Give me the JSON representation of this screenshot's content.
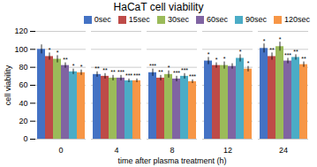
{
  "chart_data": {
    "type": "bar",
    "title": "HaCaT cell viability",
    "xlabel": "time after plasma treatment (h)",
    "ylabel": "cell viability",
    "categories": [
      "0",
      "4",
      "8",
      "12",
      "24"
    ],
    "series": [
      {
        "name": "0sec",
        "color": "#4472C4",
        "values": [
          100,
          72,
          74,
          87,
          101
        ],
        "errors": [
          5,
          3,
          4,
          4,
          5
        ],
        "annotations": [
          null,
          "**",
          "***",
          "*",
          "*"
        ]
      },
      {
        "name": "15sec",
        "color": "#BE4B48",
        "values": [
          92,
          70,
          68,
          82,
          92
        ],
        "errors": [
          4,
          3,
          3,
          3,
          4
        ],
        "annotations": [
          "*",
          "**",
          "**",
          "*",
          "**"
        ]
      },
      {
        "name": "30sec",
        "color": "#9BBB59",
        "values": [
          89,
          68,
          72,
          82,
          103
        ],
        "errors": [
          4,
          3,
          4,
          4,
          5
        ],
        "annotations": [
          "*",
          "**",
          "*",
          "*",
          "*"
        ]
      },
      {
        "name": "60sec",
        "color": "#8064A2",
        "values": [
          82,
          68,
          67,
          81,
          87
        ],
        "errors": [
          3,
          3,
          3,
          3,
          3
        ],
        "annotations": [
          "**",
          "***",
          "***",
          null,
          "***"
        ]
      },
      {
        "name": "90sec",
        "color": "#4BACC6",
        "values": [
          75,
          65,
          70,
          90,
          91
        ],
        "errors": [
          3,
          2,
          3,
          4,
          3
        ],
        "annotations": [
          "*",
          "***",
          "***",
          "*",
          "**"
        ]
      },
      {
        "name": "120sec",
        "color": "#F79646",
        "values": [
          74,
          65,
          64,
          78,
          83
        ],
        "errors": [
          3,
          2,
          2,
          3,
          3
        ],
        "annotations": [
          "*",
          "***",
          "***",
          "*",
          "**"
        ]
      }
    ],
    "ylim": [
      0,
      120
    ],
    "yticks": [
      0,
      20,
      40,
      60,
      80,
      100,
      120
    ],
    "grid": true,
    "legend": "upper right"
  }
}
